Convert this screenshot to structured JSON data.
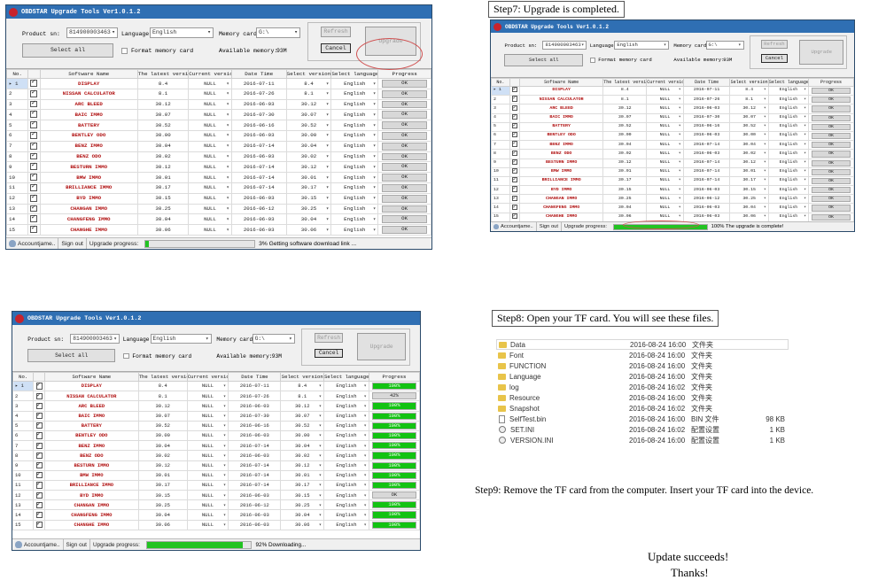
{
  "windows": [
    {
      "id": "w1",
      "title": "OBDSTAR Upgrade Tools Ver1.0.1.2",
      "product_label": "Product sn:",
      "product_value": "814900003463",
      "language_label": "Language:",
      "language_value": "English",
      "memory_label": "Memory card:",
      "memory_value": "G:\\",
      "select_all_label": "Select all",
      "format_label": "Format memory card",
      "available_label": "Available memory:",
      "available_value": "93M",
      "refresh_label": "Refresh",
      "upgrade_label": "Upgrade",
      "cancel_label": "Cancel",
      "status": {
        "account": "Accountjame..",
        "signout": "Sign out",
        "progress_label": "Upgrade progress:",
        "progress_fraction": 0.03,
        "message": "3%  Getting software download link ..."
      }
    },
    {
      "id": "w2",
      "title": "OBDSTAR Upgrade Tools Ver1.0.1.2",
      "product_label": "Product sn:",
      "product_value": "814900003463",
      "language_label": "Language:",
      "language_value": "English",
      "memory_label": "Memory card:",
      "memory_value": "G:\\",
      "select_all_label": "Select all",
      "format_label": "Format memory card",
      "available_label": "Available memory:",
      "available_value": "93M",
      "refresh_label": "Refresh",
      "upgrade_label": "Upgrade",
      "cancel_label": "Cancel",
      "status": {
        "account": "Accountjame..",
        "signout": "Sign out",
        "progress_label": "Upgrade progress:",
        "progress_fraction": 1.0,
        "message": "100%  The upgrade is complete!"
      }
    },
    {
      "id": "w3",
      "title": "OBDSTAR Upgrade Tools Ver1.0.1.2",
      "product_label": "Product sn:",
      "product_value": "814900003463",
      "language_label": "Language:",
      "language_value": "English",
      "memory_label": "Memory card:",
      "memory_value": "G:\\",
      "select_all_label": "Select all",
      "format_label": "Format memory card",
      "available_label": "Available memory:",
      "available_value": "93M",
      "refresh_label": "Refresh",
      "upgrade_label": "Upgrade",
      "cancel_label": "Cancel",
      "status": {
        "account": "Accountjame..",
        "signout": "Sign out",
        "progress_label": "Upgrade progress:",
        "progress_fraction": 0.92,
        "message": "92%  Downloading..."
      }
    }
  ],
  "table_headers": [
    "No.",
    "",
    "Software Name",
    "The latest version",
    "Current version",
    "Date Time",
    "Select version",
    "Select language",
    "Progress"
  ],
  "rows": [
    {
      "no": "1",
      "name": "DISPLAY",
      "latest": "8.4",
      "current": "NULL",
      "date": "2016-07-11",
      "select": "8.4",
      "lang": "English"
    },
    {
      "no": "2",
      "name": "NISSAN CALCULATOR",
      "latest": "8.1",
      "current": "NULL",
      "date": "2016-07-26",
      "select": "8.1",
      "lang": "English"
    },
    {
      "no": "3",
      "name": "ARC BLEED",
      "latest": "30.12",
      "current": "NULL",
      "date": "2016-06-03",
      "select": "30.12",
      "lang": "English"
    },
    {
      "no": "4",
      "name": "BAIC IMMO",
      "latest": "30.07",
      "current": "NULL",
      "date": "2016-07-30",
      "select": "30.07",
      "lang": "English"
    },
    {
      "no": "5",
      "name": "BATTERY",
      "latest": "30.52",
      "current": "NULL",
      "date": "2016-06-16",
      "select": "30.52",
      "lang": "English"
    },
    {
      "no": "6",
      "name": "BENTLEY ODO",
      "latest": "30.00",
      "current": "NULL",
      "date": "2016-06-03",
      "select": "30.00",
      "lang": "English"
    },
    {
      "no": "7",
      "name": "BENZ IMMO",
      "latest": "30.04",
      "current": "NULL",
      "date": "2016-07-14",
      "select": "30.04",
      "lang": "English"
    },
    {
      "no": "8",
      "name": "BENZ ODO",
      "latest": "30.02",
      "current": "NULL",
      "date": "2016-06-03",
      "select": "30.02",
      "lang": "English"
    },
    {
      "no": "9",
      "name": "BESTURN IMMO",
      "latest": "30.12",
      "current": "NULL",
      "date": "2016-07-14",
      "select": "30.12",
      "lang": "English"
    },
    {
      "no": "10",
      "name": "BMW IMMO",
      "latest": "30.01",
      "current": "NULL",
      "date": "2016-07-14",
      "select": "30.01",
      "lang": "English"
    },
    {
      "no": "11",
      "name": "BRILLIANCE IMMO",
      "latest": "30.17",
      "current": "NULL",
      "date": "2016-07-14",
      "select": "30.17",
      "lang": "English"
    },
    {
      "no": "12",
      "name": "BYD IMMO",
      "latest": "30.15",
      "current": "NULL",
      "date": "2016-06-03",
      "select": "30.15",
      "lang": "English"
    },
    {
      "no": "13",
      "name": "CHANGAN IMMO",
      "latest": "30.25",
      "current": "NULL",
      "date": "2016-06-12",
      "select": "30.25",
      "lang": "English"
    },
    {
      "no": "14",
      "name": "CHANGFENG IMMO",
      "latest": "30.04",
      "current": "NULL",
      "date": "2016-06-03",
      "select": "30.04",
      "lang": "English"
    },
    {
      "no": "15",
      "name": "CHANGHE IMMO",
      "latest": "30.06",
      "current": "NULL",
      "date": "2016-06-03",
      "select": "30.06",
      "lang": "English"
    }
  ],
  "progress_w1": [
    "OK",
    "OK",
    "OK",
    "OK",
    "OK",
    "OK",
    "OK",
    "OK",
    "OK",
    "OK",
    "OK",
    "OK",
    "OK",
    "OK",
    "OK"
  ],
  "progress_w2": [
    "OK",
    "OK",
    "OK",
    "OK",
    "OK",
    "OK",
    "OK",
    "OK",
    "OK",
    "OK",
    "OK",
    "OK",
    "OK",
    "OK",
    "OK"
  ],
  "progress_w3": [
    "100%",
    "42%",
    "100%",
    "100%",
    "100%",
    "100%",
    "100%",
    "100%",
    "100%",
    "100%",
    "100%",
    "OK",
    "100%",
    "100%",
    "100%"
  ],
  "steps": {
    "step7": "Step7: Upgrade is completed.",
    "step8": "Step8: Open your TF card. You will see these files.",
    "step9": "Step9: Remove the TF card from the computer. Insert your TF card into the device.",
    "final1": "Update succeeds!",
    "final2": "Thanks!"
  },
  "files": [
    {
      "name": "Data",
      "date": "2016-08-24 16:00",
      "type": "文件夹",
      "size": "",
      "kind": "folder"
    },
    {
      "name": "Font",
      "date": "2016-08-24 16:00",
      "type": "文件夹",
      "size": "",
      "kind": "folder"
    },
    {
      "name": "FUNCTION",
      "date": "2016-08-24 16:00",
      "type": "文件夹",
      "size": "",
      "kind": "folder"
    },
    {
      "name": "Language",
      "date": "2016-08-24 16:00",
      "type": "文件夹",
      "size": "",
      "kind": "folder"
    },
    {
      "name": "log",
      "date": "2016-08-24 16:02",
      "type": "文件夹",
      "size": "",
      "kind": "folder"
    },
    {
      "name": "Resource",
      "date": "2016-08-24 16:00",
      "type": "文件夹",
      "size": "",
      "kind": "folder"
    },
    {
      "name": "Snapshot",
      "date": "2016-08-24 16:02",
      "type": "文件夹",
      "size": "",
      "kind": "folder"
    },
    {
      "name": "SelfTest.bin",
      "date": "2016-08-24 16:00",
      "type": "BIN 文件",
      "size": "98 KB",
      "kind": "file"
    },
    {
      "name": "SET.INI",
      "date": "2016-08-24 16:02",
      "type": "配置设置",
      "size": "1 KB",
      "kind": "ini"
    },
    {
      "name": "VERSION.INI",
      "date": "2016-08-24 16:00",
      "type": "配置设置",
      "size": "1 KB",
      "kind": "ini"
    }
  ],
  "colors": {
    "title_bar": "#2f6fb3",
    "software_name": "#b01010",
    "progress_green": "#12c312",
    "highlight_ellipse": "#d05050"
  }
}
